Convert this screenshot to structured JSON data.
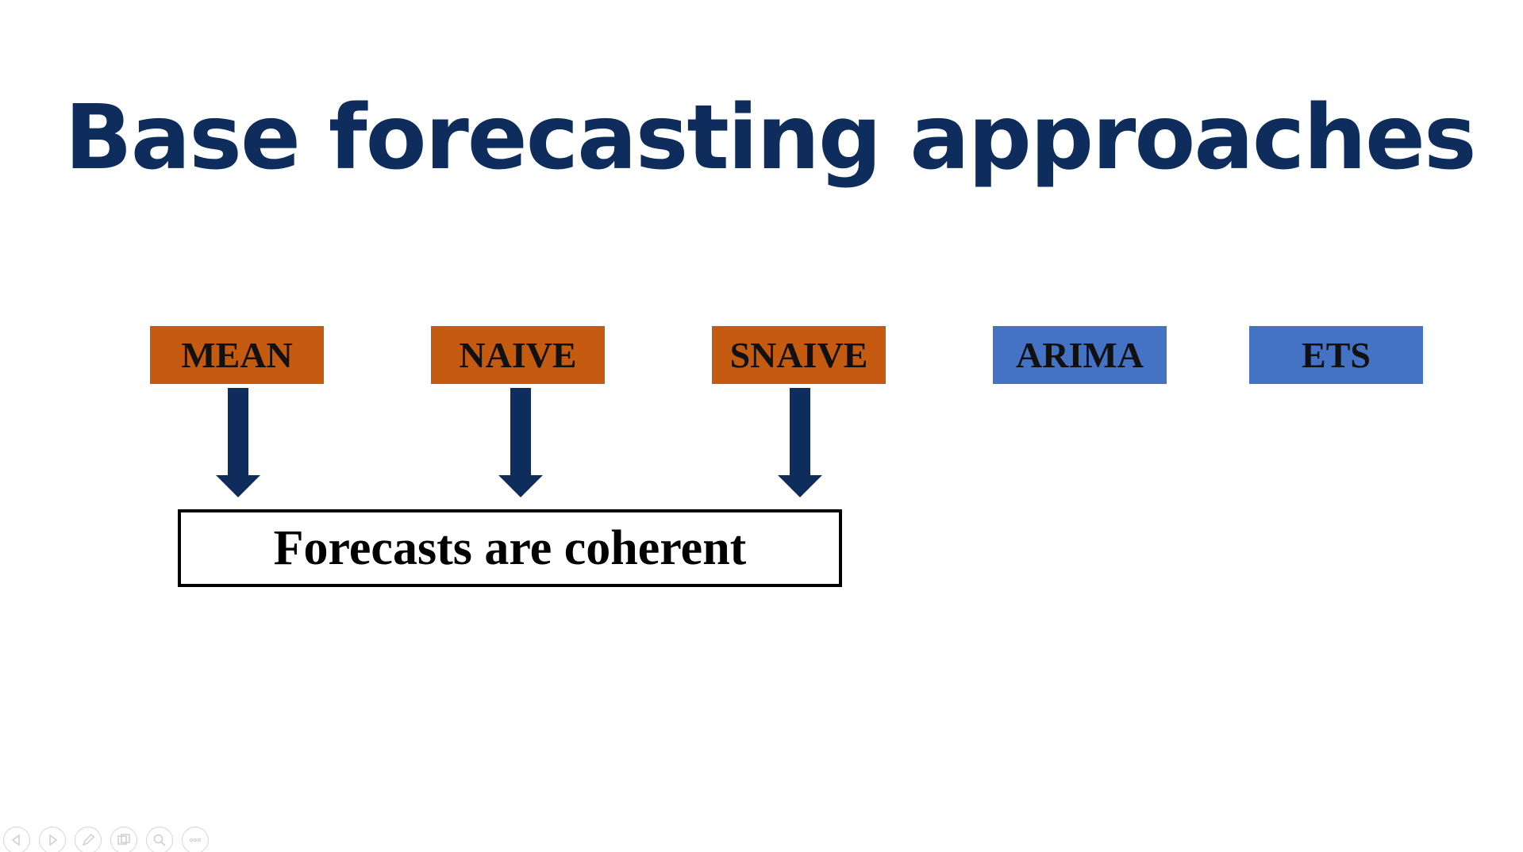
{
  "slide": {
    "title": "Base forecasting approaches"
  },
  "methods": [
    {
      "label": "MEAN",
      "color": "#c55a11"
    },
    {
      "label": "NAIVE",
      "color": "#c55a11"
    },
    {
      "label": "SNAIVE",
      "color": "#c55a11"
    },
    {
      "label": "ARIMA",
      "color": "#4472c4"
    },
    {
      "label": "ETS",
      "color": "#4472c4"
    }
  ],
  "result": {
    "label": "Forecasts are coherent"
  },
  "colors": {
    "title": "#0e2d5c",
    "arrow": "#0e2d5c"
  },
  "nav": {
    "icons": [
      "previous-icon",
      "next-icon",
      "pen-icon",
      "slides-icon",
      "zoom-icon",
      "more-icon"
    ]
  }
}
